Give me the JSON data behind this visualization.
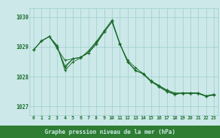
{
  "xlabel": "Graphe pression niveau de la mer (hPa)",
  "x_ticks": [
    0,
    1,
    2,
    3,
    4,
    5,
    6,
    7,
    8,
    9,
    10,
    11,
    12,
    13,
    14,
    15,
    16,
    17,
    18,
    19,
    20,
    21,
    22,
    23
  ],
  "ylim": [
    1026.7,
    1030.3
  ],
  "yticks": [
    1027,
    1028,
    1029,
    1030
  ],
  "background_color": "#cce8e8",
  "grid_color": "#99cccc",
  "line_color": "#1a6b2a",
  "label_bg": "#2e7d32",
  "label_fg": "#cce8e8",
  "series": [
    [
      1028.9,
      1029.2,
      1029.35,
      1029.0,
      1028.35,
      1028.6,
      1028.65,
      1028.8,
      1029.1,
      1029.5,
      1029.85,
      1029.1,
      1028.55,
      1028.3,
      1028.1,
      1027.85,
      1027.7,
      1027.55,
      1027.45,
      1027.45,
      1027.45,
      1027.45,
      1027.35,
      1027.4
    ],
    [
      1028.9,
      1029.2,
      1029.35,
      1029.05,
      1028.2,
      1028.5,
      1028.62,
      1028.87,
      1029.18,
      1029.55,
      1029.9,
      1029.12,
      1028.5,
      1028.22,
      1028.08,
      1027.82,
      1027.68,
      1027.52,
      1027.43,
      1027.43,
      1027.43,
      1027.43,
      1027.33,
      1027.38
    ],
    [
      1028.9,
      1029.2,
      1029.35,
      1028.95,
      1028.55,
      1028.6,
      1028.65,
      1028.8,
      1029.1,
      1029.5,
      1029.85,
      1029.1,
      1028.5,
      1028.2,
      1028.1,
      1027.85,
      1027.7,
      1027.5,
      1027.4,
      1027.45,
      1027.45,
      1027.45,
      1027.35,
      1027.4
    ],
    [
      1028.9,
      1029.2,
      1029.35,
      1029.0,
      1028.3,
      1028.6,
      1028.65,
      1028.85,
      1029.15,
      1029.5,
      1029.85,
      1029.1,
      1028.5,
      1028.2,
      1028.1,
      1027.85,
      1027.65,
      1027.5,
      1027.4,
      1027.45,
      1027.45,
      1027.45,
      1027.35,
      1027.4
    ]
  ]
}
